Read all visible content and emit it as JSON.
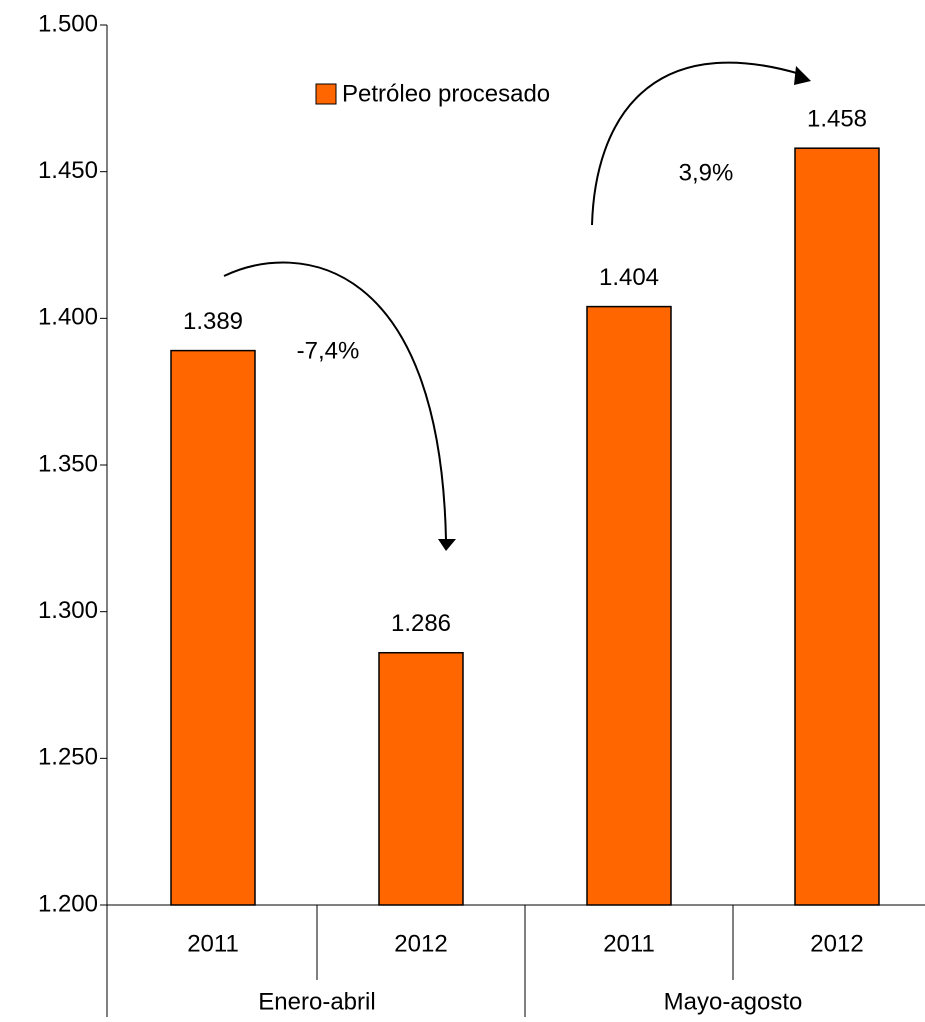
{
  "chart_data": {
    "type": "bar",
    "categories": [
      "2011",
      "2012",
      "2011",
      "2012"
    ],
    "groups": [
      "Enero-abril",
      "Mayo-agosto"
    ],
    "series": [
      {
        "name": "Petróleo procesado",
        "color": "#ff6600",
        "values": [
          1389,
          1286,
          1404,
          1458
        ],
        "value_labels": [
          "1.389",
          "1.286",
          "1.404",
          "1.458"
        ]
      }
    ],
    "ylim": [
      1200,
      1500
    ],
    "yticks": [
      {
        "value": 1200,
        "label": "1.200"
      },
      {
        "value": 1250,
        "label": "1.250"
      },
      {
        "value": 1300,
        "label": "1.300"
      },
      {
        "value": 1350,
        "label": "1.350"
      },
      {
        "value": 1400,
        "label": "1.400"
      },
      {
        "value": 1450,
        "label": "1.450"
      },
      {
        "value": 1500,
        "label": "1.500"
      }
    ],
    "annotations": [
      "-7,4%",
      "3,9%"
    ]
  }
}
